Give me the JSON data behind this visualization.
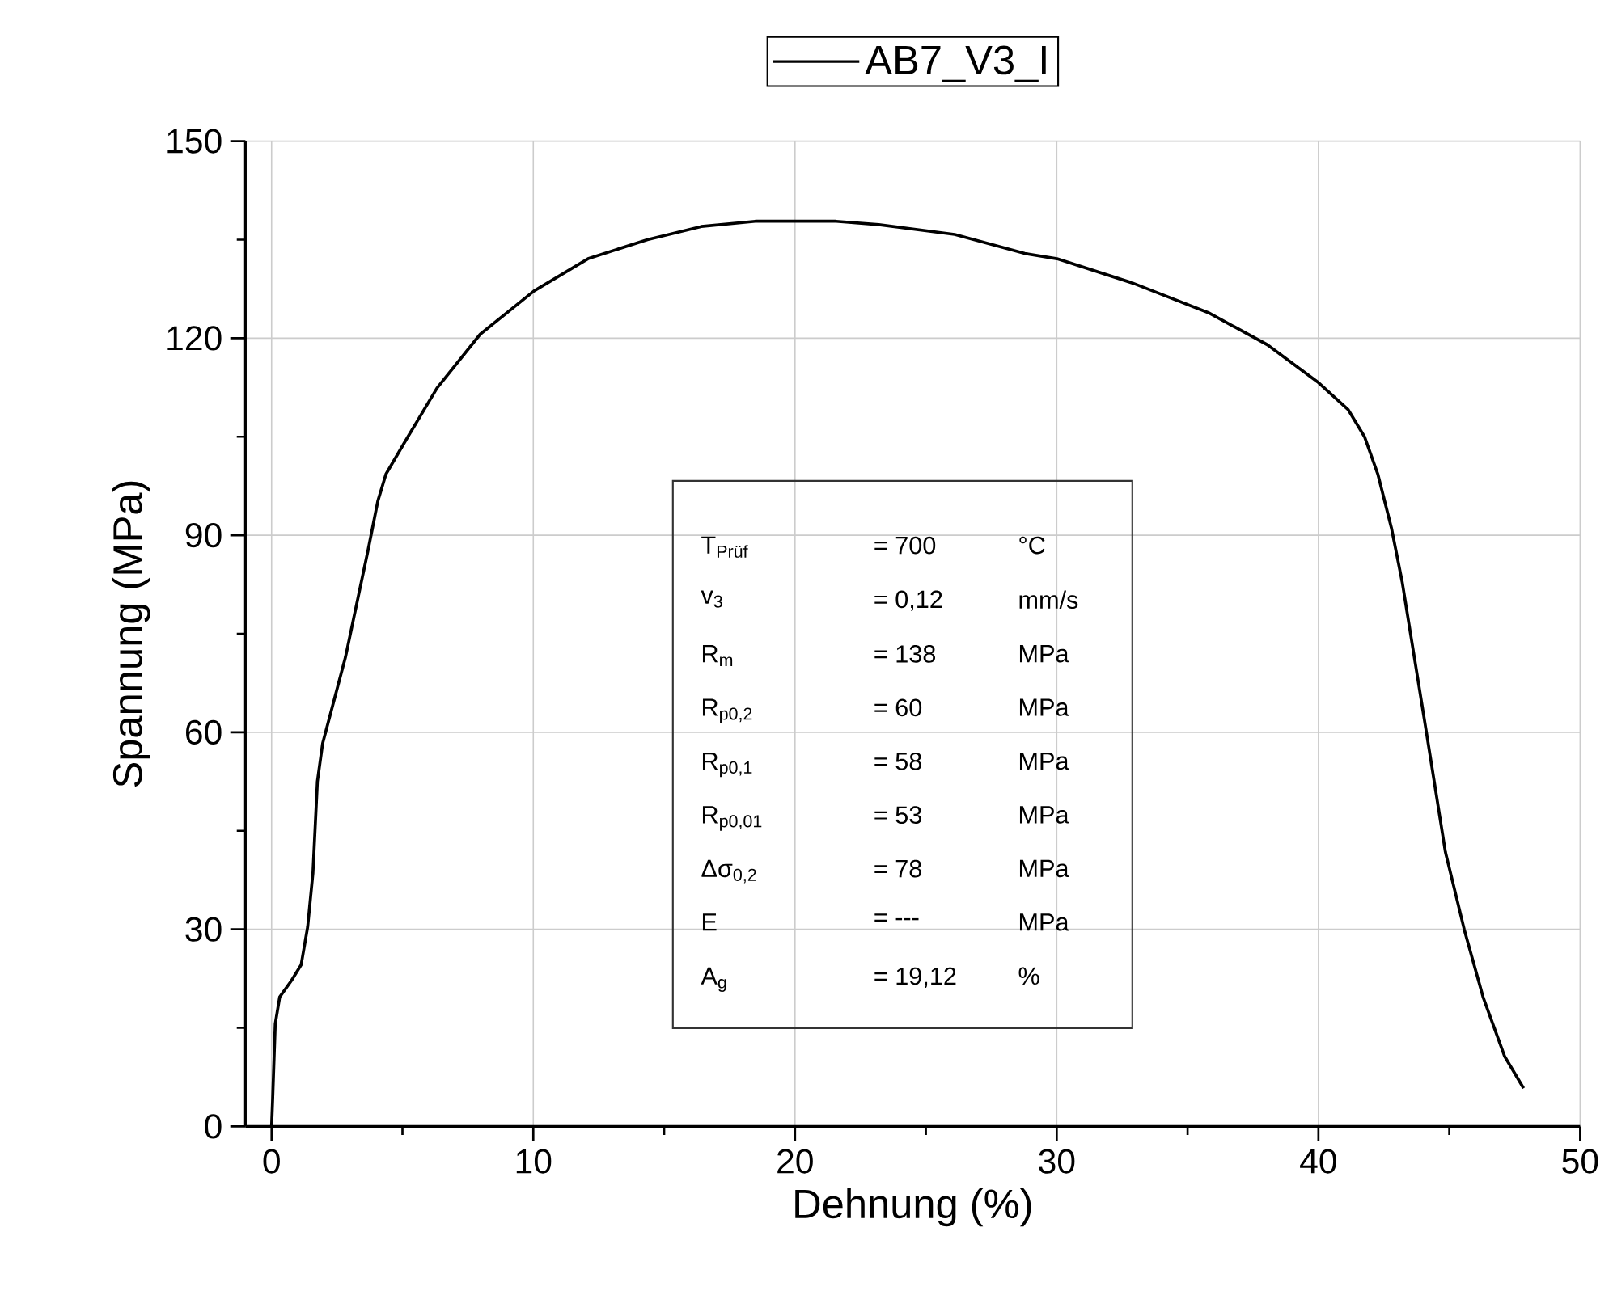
{
  "chart_data": {
    "type": "line",
    "xlabel": "Dehnung (%)",
    "ylabel": "Spannung (MPa)",
    "xlim": [
      -1,
      50
    ],
    "ylim": [
      0,
      150
    ],
    "xticks": [
      0,
      10,
      20,
      30,
      40,
      50
    ],
    "yticks": [
      0,
      30,
      60,
      90,
      120,
      150
    ],
    "grid": true,
    "legend": "top",
    "series": [
      {
        "name": "AB7_V3_I",
        "color": "#000000",
        "x": [
          0,
          0.04,
          0.14,
          0.31,
          0.76,
          1.13,
          1.38,
          1.58,
          1.75,
          1.95,
          2.82,
          3.69,
          4.06,
          4.37,
          5.09,
          6.32,
          7.97,
          10.03,
          12.09,
          14.36,
          16.42,
          18.48,
          20.54,
          21.57,
          23.2,
          26.1,
          28.78,
          30.01,
          32.9,
          35.79,
          38.05,
          40.01,
          41.14,
          41.76,
          42.27,
          42.79,
          43.2,
          44.13,
          44.85,
          45.57,
          46.29,
          47.11,
          47.84
        ],
        "values": [
          0,
          4.1,
          15.6,
          19.7,
          22.2,
          24.6,
          30.4,
          38.6,
          52.5,
          58.3,
          71.4,
          87.8,
          95.2,
          99.3,
          104.2,
          112.4,
          120.6,
          127.2,
          132.1,
          135.0,
          137.0,
          137.8,
          137.8,
          137.8,
          137.3,
          135.8,
          132.9,
          132.1,
          128.4,
          123.9,
          119.0,
          113.2,
          109.1,
          105.0,
          99.3,
          91.1,
          82.9,
          59.9,
          41.8,
          30.0,
          19.7,
          10.7,
          5.8
        ]
      }
    ],
    "annotations": [
      "T$_{Prüf}$",
      "= 700",
      "°C",
      "v$_{3}$",
      "= 0,12",
      "mm/s",
      "R$_{m}$",
      "= 138",
      "MPa",
      "R$_{p0,2}$",
      "= 60",
      "MPa",
      "R$_{p0,1}$",
      "= 58",
      "MPa",
      "R$_{p0,01}$",
      "= 53",
      "MPa",
      "Δσ$_{0,2}$",
      "= 78",
      "MPa",
      "E",
      "= ---",
      "MPa",
      "A$_{g}$",
      "= 19,12",
      "%"
    ]
  }
}
